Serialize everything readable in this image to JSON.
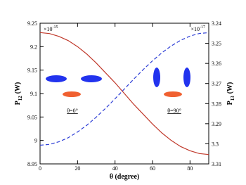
{
  "chart_data": {
    "type": "line",
    "x_label": "θ (degree)",
    "y_label": {
      "text": "P",
      "subscript": "12",
      "unit": "(W)"
    },
    "y2_label": {
      "text": "P",
      "subscript": "13",
      "unit": "(W)"
    },
    "y_multiplier": {
      "base": "×10",
      "exponent": "-15"
    },
    "y2_multiplier": {
      "base": "×10",
      "exponent": "-17"
    },
    "annotations": [
      "θ=0°",
      "θ=90°"
    ],
    "x": [
      0,
      5,
      10,
      15,
      20,
      25,
      30,
      35,
      40,
      45,
      50,
      55,
      60,
      65,
      70,
      75,
      80,
      85,
      90
    ],
    "series": [
      {
        "color": "#c0392b",
        "style": "solid",
        "axis": "y",
        "values": [
          9.23,
          9.228,
          9.222,
          9.213,
          9.2,
          9.184,
          9.165,
          9.144,
          9.123,
          9.1,
          9.077,
          9.056,
          9.035,
          9.016,
          9.0,
          8.987,
          8.978,
          8.972,
          8.97
        ]
      },
      {
        "color": "#2e3fd6",
        "style": "dashed",
        "axis": "y2",
        "values": [
          3.3007,
          3.3003,
          3.299,
          3.297,
          3.2941,
          3.2907,
          3.2867,
          3.2823,
          3.2776,
          3.2727,
          3.2678,
          3.2631,
          3.2587,
          3.2547,
          3.2513,
          3.2485,
          3.2464,
          3.2451,
          3.2447
        ]
      }
    ],
    "xlim": [
      0,
      90
    ],
    "xticks": [
      0,
      20,
      40,
      60,
      80
    ],
    "ylim": [
      8.95,
      9.25
    ],
    "yticks": [
      8.95,
      9,
      9.05,
      9.1,
      9.15,
      9.2,
      9.25
    ],
    "y2lim": [
      3.31,
      3.24
    ],
    "y2ticks": [
      3.24,
      3.25,
      3.26,
      3.27,
      3.28,
      3.29,
      3.3,
      3.31
    ]
  }
}
